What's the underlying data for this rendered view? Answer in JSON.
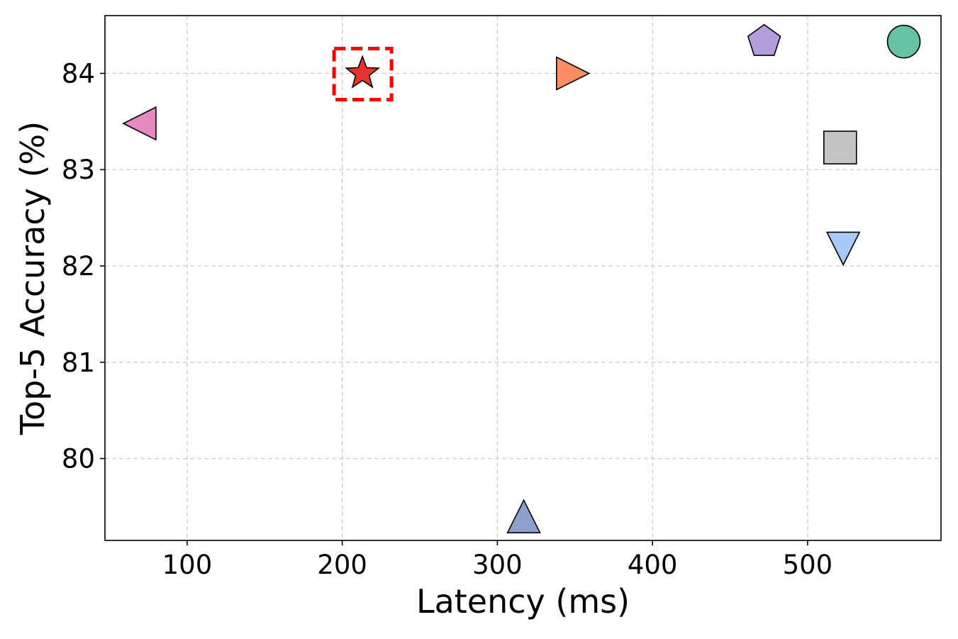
{
  "chart_data": {
    "type": "scatter",
    "title": "",
    "xlabel": "Latency (ms)",
    "ylabel": "Top-5 Accuracy (%)",
    "xlim": [
      47,
      586
    ],
    "ylim": [
      79.15,
      84.6
    ],
    "xticks": [
      100,
      200,
      300,
      400,
      500
    ],
    "yticks": [
      80,
      81,
      82,
      83,
      84
    ],
    "grid": true,
    "points": [
      {
        "x": 73,
        "y": 83.48,
        "marker": "triangle-left",
        "color": "#e78ac3"
      },
      {
        "x": 213,
        "y": 84.0,
        "marker": "star",
        "color": "#e8342f",
        "highlighted": true
      },
      {
        "x": 345,
        "y": 84.0,
        "marker": "triangle-right",
        "color": "#fc8d62"
      },
      {
        "x": 317,
        "y": 79.34,
        "marker": "triangle-up",
        "color": "#8da0cb"
      },
      {
        "x": 472,
        "y": 84.33,
        "marker": "pentagon",
        "color": "#b39ddb"
      },
      {
        "x": 562,
        "y": 84.33,
        "marker": "circle",
        "color": "#66c2a5"
      },
      {
        "x": 521,
        "y": 83.23,
        "marker": "square",
        "color": "#c4c4c4"
      },
      {
        "x": 523,
        "y": 82.24,
        "marker": "triangle-down",
        "color": "#a6cbf7"
      }
    ]
  }
}
